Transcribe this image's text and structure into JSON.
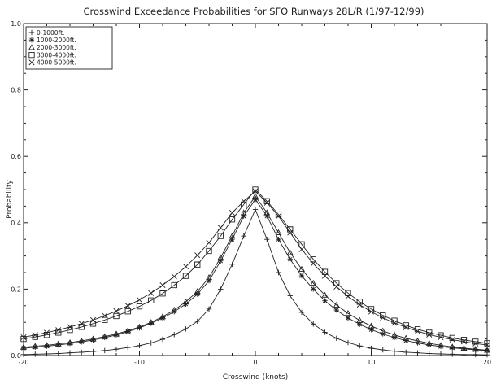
{
  "chart_data": {
    "type": "line",
    "title": "Crosswind Exceedance Probabilities for SFO Runways 28L/R (1/97-12/99)",
    "xlabel": "Crosswind (knots)",
    "ylabel": "Probability",
    "xlim": [
      -20,
      20
    ],
    "ylim": [
      0,
      1.0
    ],
    "xticks": [
      -20,
      -10,
      0,
      10,
      20
    ],
    "yticks": [
      0,
      0.2,
      0.4,
      0.6,
      0.8,
      1.0
    ],
    "ytick_labels": [
      "0.0",
      "0.2",
      "0.4",
      "0.6",
      "0.8",
      "1.0"
    ],
    "grid": false,
    "legend_position": "top-left",
    "x": [
      -20,
      -19,
      -18,
      -17,
      -16,
      -15,
      -14,
      -13,
      -12,
      -11,
      -10,
      -9,
      -8,
      -7,
      -6,
      -5,
      -4,
      -3,
      -2,
      -1,
      0,
      1,
      2,
      3,
      4,
      5,
      6,
      7,
      8,
      9,
      10,
      11,
      12,
      13,
      14,
      15,
      16,
      17,
      18,
      19,
      20
    ],
    "series": [
      {
        "name": "0-1000ft.",
        "marker": "plus",
        "values": [
          0.003,
          0.004,
          0.005,
          0.006,
          0.008,
          0.01,
          0.012,
          0.015,
          0.019,
          0.024,
          0.03,
          0.038,
          0.049,
          0.063,
          0.08,
          0.103,
          0.14,
          0.2,
          0.275,
          0.36,
          0.44,
          0.35,
          0.25,
          0.18,
          0.13,
          0.095,
          0.07,
          0.052,
          0.039,
          0.029,
          0.022,
          0.017,
          0.013,
          0.01,
          0.008,
          0.006,
          0.005,
          0.004,
          0.003,
          0.003,
          0.002
        ]
      },
      {
        "name": "1000-2000ft.",
        "marker": "star",
        "values": [
          0.022,
          0.025,
          0.028,
          0.032,
          0.036,
          0.041,
          0.047,
          0.054,
          0.062,
          0.072,
          0.083,
          0.097,
          0.113,
          0.132,
          0.155,
          0.185,
          0.225,
          0.285,
          0.35,
          0.42,
          0.47,
          0.42,
          0.35,
          0.29,
          0.24,
          0.2,
          0.165,
          0.137,
          0.113,
          0.094,
          0.078,
          0.065,
          0.054,
          0.045,
          0.038,
          0.032,
          0.027,
          0.023,
          0.02,
          0.017,
          0.015
        ]
      },
      {
        "name": "2000-3000ft.",
        "marker": "triangle",
        "values": [
          0.025,
          0.028,
          0.031,
          0.035,
          0.039,
          0.044,
          0.05,
          0.057,
          0.065,
          0.075,
          0.086,
          0.1,
          0.117,
          0.137,
          0.162,
          0.193,
          0.235,
          0.295,
          0.36,
          0.43,
          0.48,
          0.43,
          0.37,
          0.31,
          0.26,
          0.218,
          0.182,
          0.152,
          0.127,
          0.106,
          0.089,
          0.074,
          0.062,
          0.052,
          0.044,
          0.037,
          0.031,
          0.026,
          0.022,
          0.019,
          0.016
        ]
      },
      {
        "name": "3000-4000ft.",
        "marker": "square",
        "values": [
          0.05,
          0.056,
          0.062,
          0.069,
          0.077,
          0.086,
          0.096,
          0.107,
          0.119,
          0.133,
          0.148,
          0.166,
          0.187,
          0.212,
          0.24,
          0.274,
          0.315,
          0.36,
          0.41,
          0.455,
          0.5,
          0.465,
          0.425,
          0.38,
          0.335,
          0.29,
          0.252,
          0.218,
          0.188,
          0.162,
          0.14,
          0.121,
          0.105,
          0.091,
          0.079,
          0.069,
          0.061,
          0.053,
          0.047,
          0.042,
          0.037
        ]
      },
      {
        "name": "4000-5000ft.",
        "marker": "x",
        "values": [
          0.055,
          0.062,
          0.069,
          0.077,
          0.086,
          0.096,
          0.107,
          0.12,
          0.134,
          0.15,
          0.168,
          0.188,
          0.212,
          0.238,
          0.268,
          0.302,
          0.34,
          0.385,
          0.43,
          0.465,
          0.495,
          0.46,
          0.42,
          0.37,
          0.32,
          0.277,
          0.24,
          0.207,
          0.178,
          0.153,
          0.132,
          0.114,
          0.098,
          0.085,
          0.073,
          0.063,
          0.055,
          0.048,
          0.042,
          0.036,
          0.032
        ]
      }
    ]
  }
}
